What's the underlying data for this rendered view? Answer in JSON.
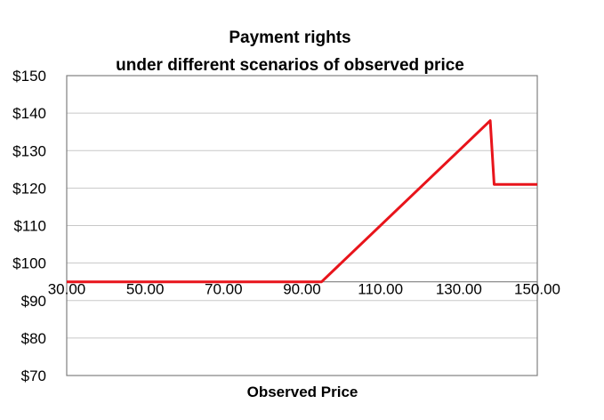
{
  "chart_data": {
    "type": "line",
    "title": "Payment rights",
    "subtitle": "under different scenarios of observed price",
    "xlabel": "Observed Price",
    "ylabel": "",
    "xlim": [
      30,
      150
    ],
    "ylim": [
      70,
      150
    ],
    "x_crosses_y_at": 95,
    "x_ticks": [
      30,
      50,
      70,
      90,
      110,
      130,
      150
    ],
    "x_tick_labels": [
      "30.00",
      "50.00",
      "70.00",
      "90.00",
      "110.00",
      "130.00",
      "150.00"
    ],
    "y_ticks": [
      70,
      80,
      90,
      100,
      110,
      120,
      130,
      140,
      150
    ],
    "y_tick_labels": [
      "$70",
      "$80",
      "$90",
      "$100",
      "$110",
      "$120",
      "$130",
      "$140",
      "$150"
    ],
    "grid": "horizontal",
    "legend": "none",
    "series": [
      {
        "color": "#e8141b",
        "x": [
          30,
          95,
          138,
          139,
          150
        ],
        "y": [
          95,
          95,
          138,
          121,
          121
        ]
      }
    ]
  }
}
